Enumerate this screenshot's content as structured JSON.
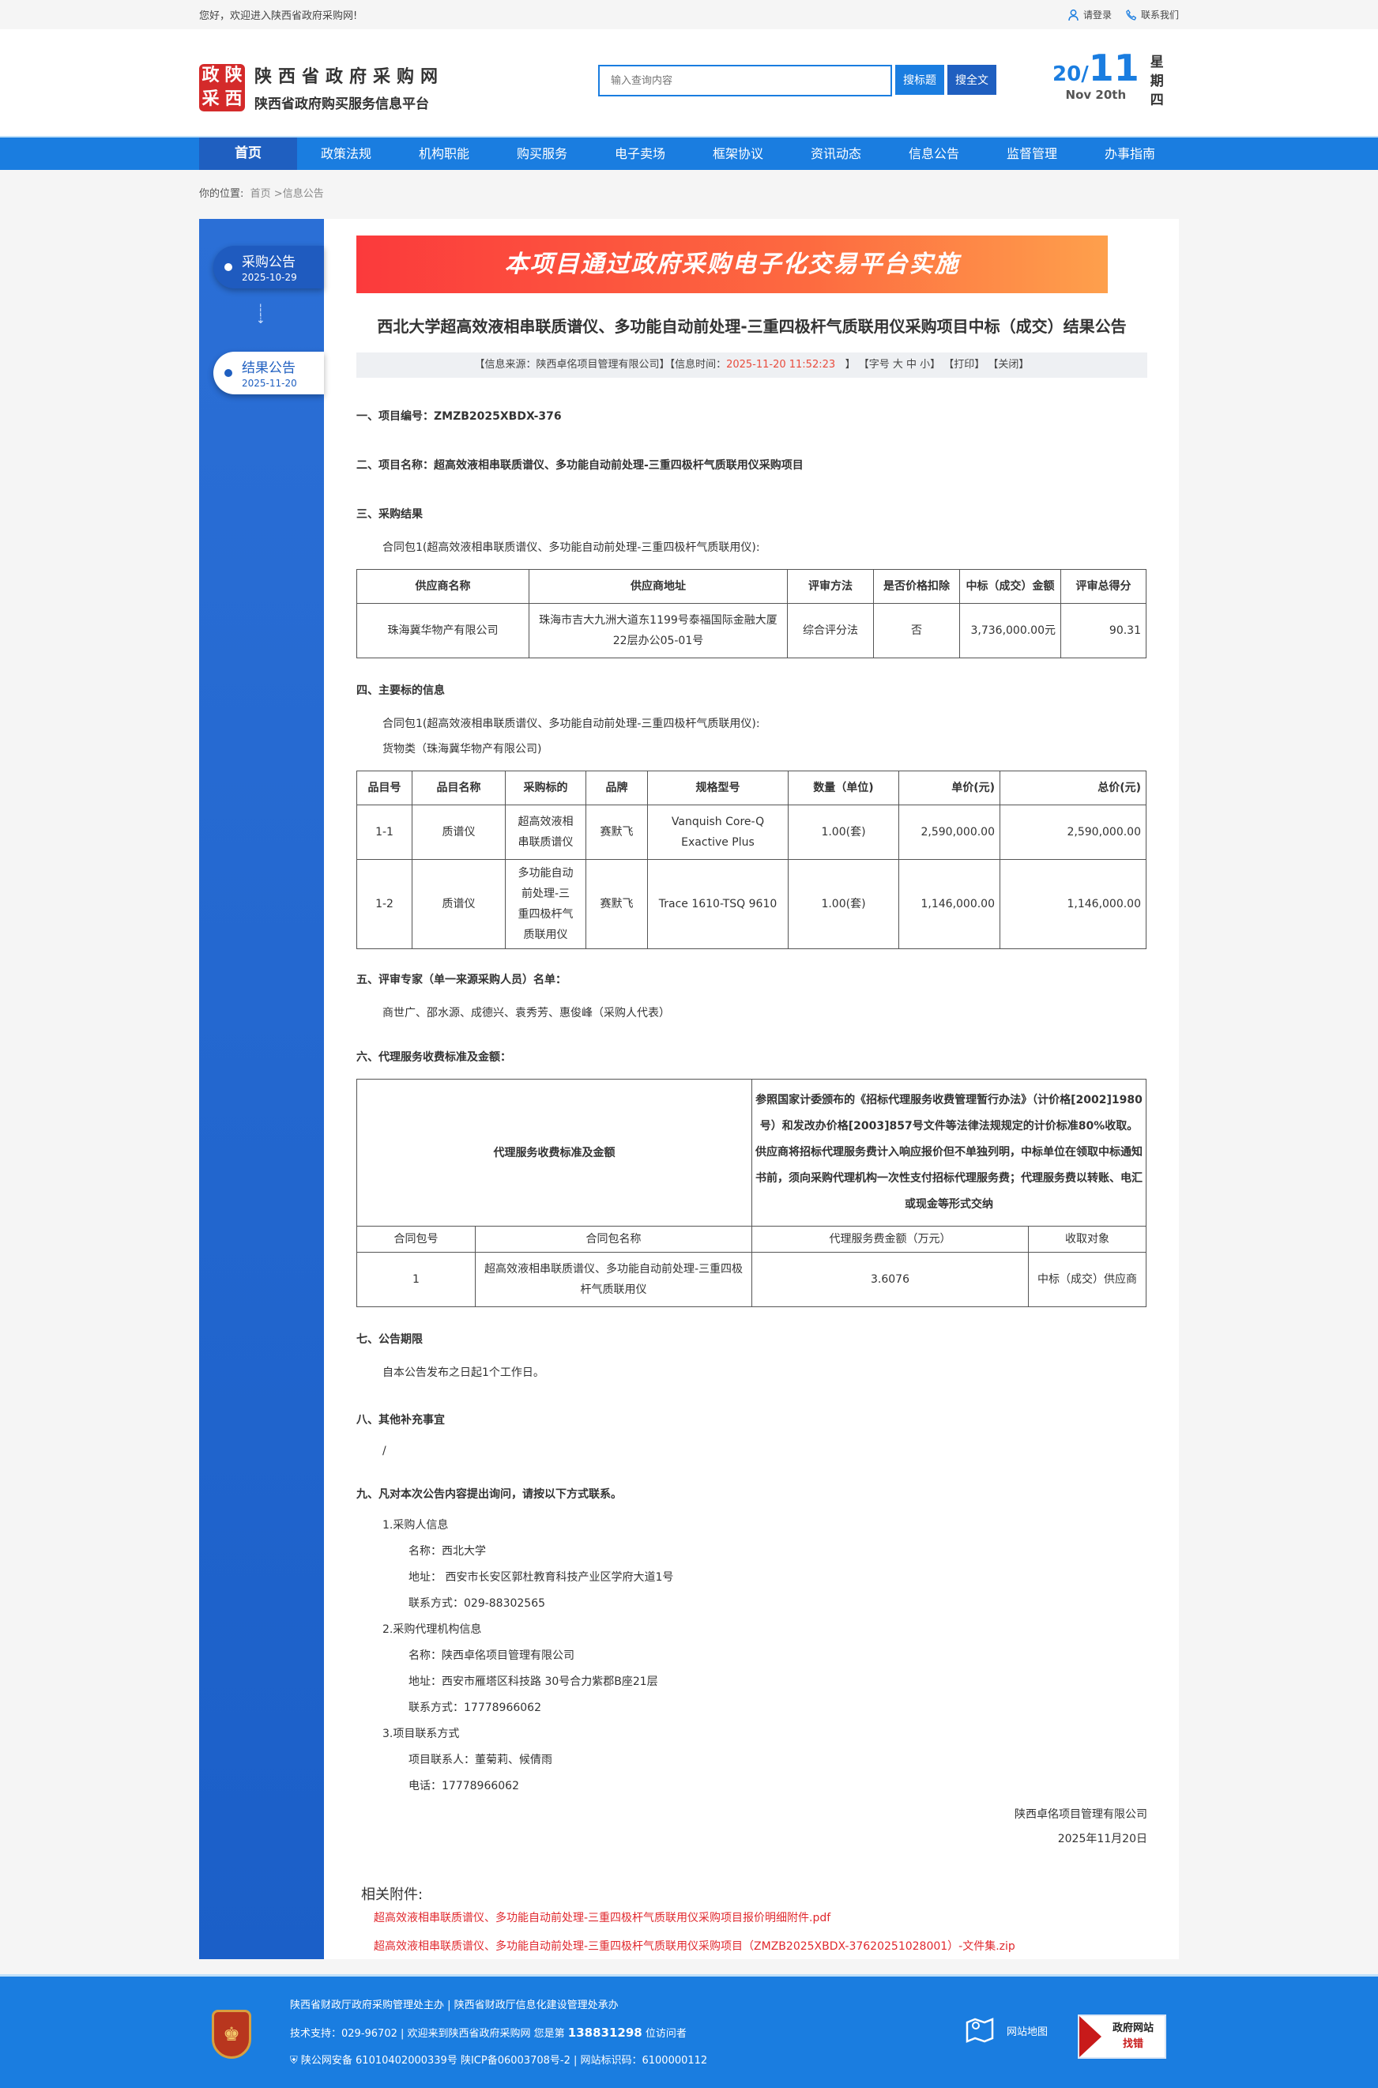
{
  "topbar": {
    "welcome": "您好，欢迎进入陕西省政府采购网!",
    "login": "请登录",
    "contact": "联系我们"
  },
  "header": {
    "logo_chars": [
      "政",
      "陕",
      "采",
      "西"
    ],
    "site_name": "陕西省政府采购网",
    "site_subtitle": "陕西省政府购买服务信息平台",
    "search_placeholder": "输入查询内容",
    "search_title_btn": "搜标题",
    "search_full_btn": "搜全文",
    "date": {
      "day": "20",
      "month": "11",
      "english": "Nov 20th",
      "weekday": "星期四"
    }
  },
  "nav": {
    "items": [
      "首页",
      "政策法规",
      "机构职能",
      "购买服务",
      "电子卖场",
      "框架协议",
      "资讯动态",
      "信息公告",
      "监督管理",
      "办事指南"
    ],
    "active": 0
  },
  "breadcrumb": {
    "label": "你的位置:",
    "home": "首页",
    "current": " >信息公告"
  },
  "sidebar": {
    "steps": [
      {
        "title": "采购公告",
        "date": "2025-10-29"
      },
      {
        "title": "结果公告",
        "date": "2025-11-20",
        "active": true
      }
    ]
  },
  "banner": "本项目通过政府采购电子化交易平台实施",
  "article": {
    "title": "西北大学超高效液相串联质谱仪、多功能自动前处理-三重四极杆气质联用仪采购项目中标（成交）结果公告",
    "info": {
      "source": "【信息来源：陕西卓佲项目管理有限公司】",
      "time_label": "【信息时间：",
      "time": "2025-11-20 11:52:23",
      "time_end": "】",
      "font_size": "【字号 大 中 小】",
      "print": "【打印】",
      "close": "【关闭】"
    },
    "s1": "一、项目编号：ZMZB2025XBDX-376",
    "s2": "二、项目名称：超高效液相串联质谱仪、多功能自动前处理-三重四极杆气质联用仪采购项目",
    "s3": "三、采购结果",
    "package": "合同包1(超高效液相串联质谱仪、多功能自动前处理-三重四极杆气质联用仪):",
    "result_table": {
      "headers": [
        "供应商名称",
        "供应商地址",
        "评审方法",
        "是否价格扣除",
        "中标（成交）金额",
        "评审总得分"
      ],
      "row": [
        "珠海冀华物产有限公司",
        "珠海市吉大九洲大道东1199号泰福国际金融大厦22层办公05-01号",
        "综合评分法",
        "否",
        "3,736,000.00元",
        "90.31"
      ]
    },
    "s4": "四、主要标的信息",
    "goods_type": "货物类（珠海冀华物产有限公司)",
    "items_table": {
      "headers": [
        "品目号",
        "品目名称",
        "采购标的",
        "品牌",
        "规格型号",
        "数量（单位)",
        "单价(元)",
        "总价(元)"
      ],
      "rows": [
        [
          "1-1",
          "质谱仪",
          "超高效液相串联质谱仪",
          "赛默飞",
          "Vanquish Core-Q Exactive Plus",
          "1.00(套)",
          "2,590,000.00",
          "2,590,000.00"
        ],
        [
          "1-2",
          "质谱仪",
          "多功能自动前处理-三重四极杆气质联用仪",
          "赛默飞",
          "Trace 1610-TSQ 9610",
          "1.00(套)",
          "1,146,000.00",
          "1,146,000.00"
        ]
      ]
    },
    "s5": "五、评审专家（单一来源采购人员）名单：",
    "experts": "商世广、邵水源、成德兴、袁秀芳、惠俊峰（采购人代表）",
    "s6": "六、代理服务收费标准及金额：",
    "fee_table": {
      "label": "代理服务收费标准及金额",
      "desc": "参照国家计委颁布的《招标代理服务收费管理暂行办法》（计价格[2002]1980号）和发改办价格[2003]857号文件等法律法规规定的计价标准80%收取。供应商将招标代理服务费计入响应报价但不单独列明，中标单位在领取中标通知书前，须向采购代理机构一次性支付招标代理服务费；代理服务费以转账、电汇或现金等形式交纳",
      "headers": [
        "合同包号",
        "合同包名称",
        "代理服务费金额（万元）",
        "收取对象"
      ],
      "row": [
        "1",
        "超高效液相串联质谱仪、多功能自动前处理-三重四极杆气质联用仪",
        "3.6076",
        "中标（成交）供应商"
      ]
    },
    "s7": "七、公告期限",
    "period": "自本公告发布之日起1个工作日。",
    "s8": "八、其他补充事宜",
    "other": "/",
    "s9": "九、凡对本次公告内容提出询问，请按以下方式联系。",
    "contacts": {
      "buyer_title": "1.采购人信息",
      "buyer_name": "名称：西北大学",
      "buyer_addr": "地址： 西安市长安区郭杜教育科技产业区学府大道1号",
      "buyer_phone": "联系方式：029-88302565",
      "agent_title": "2.采购代理机构信息",
      "agent_name": "名称：陕西卓佲项目管理有限公司",
      "agent_addr": "地址：西安市雁塔区科技路 30号合力紫郡B座21层",
      "agent_phone": "联系方式：17778966062",
      "project_title": "3.项目联系方式",
      "project_person": "项目联系人：董菊莉、候倩雨",
      "project_phone": "电话：17778966062"
    },
    "sign_company": "陕西卓佲项目管理有限公司",
    "sign_date": "2025年11月20日",
    "attachments_title": "相关附件:",
    "attachments": [
      "超高效液相串联质谱仪、多功能自动前处理-三重四极杆气质联用仪采购项目报价明细附件.pdf",
      "超高效液相串联质谱仪、多功能自动前处理-三重四极杆气质联用仪采购项目（ZMZB2025XBDX-37620251028001）-文件集.zip"
    ]
  },
  "footer": {
    "line1": "陕西省财政厅政府采购管理处主办 | 陕西省财政厅信息化建设管理处承办",
    "line2_prefix": "技术支持：029-96702 | 欢迎来到陕西省政府采购网 您是第 ",
    "visitors": "138831298",
    "line2_suffix": " 位访问者",
    "line3": "陕公网安备 61010402000339号   陕ICP备06003708号-2  |  网站标识码：6100000112",
    "sitemap": "网站地图",
    "badge_line1": "政府网站",
    "badge_line2": "找错"
  },
  "colors": {
    "primary": "#1a7de0",
    "dark": "#1f5fc0",
    "accent_red": "#e0282e"
  }
}
